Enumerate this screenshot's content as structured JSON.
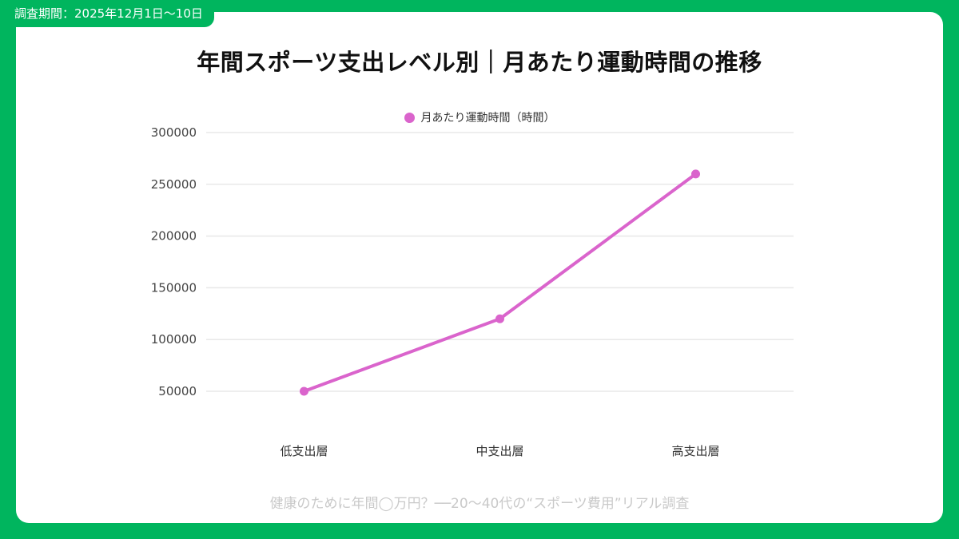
{
  "badge": {
    "label": "調査期間：2025年12月1日〜10日"
  },
  "header": {
    "title": "年間スポーツ支出レベル別｜月あたり運動時間の推移"
  },
  "legend": {
    "label": "月あたり運動時間（時間）"
  },
  "footer": {
    "caption": "健康のために年間◯万円？──20〜40代の“スポーツ費用”リアル調査"
  },
  "colors": {
    "frame_green": "#00b55e",
    "line_pink": "#da64cc",
    "grid": "#e8e8e8",
    "tick_text": "#444444",
    "category_text": "#333333",
    "footer_text": "#c9c9c9"
  },
  "chart_data": {
    "type": "line",
    "categories": [
      "低支出層",
      "中支出層",
      "高支出層"
    ],
    "series": [
      {
        "name": "月あたり運動時間（時間）",
        "values": [
          50000,
          120000,
          260000
        ]
      }
    ],
    "title": "年間スポーツ支出レベル別｜月あたり運動時間の推移",
    "xlabel": "",
    "ylabel": "",
    "ylim": [
      50000,
      300000
    ],
    "yticks": [
      50000,
      100000,
      150000,
      200000,
      250000,
      300000
    ],
    "grid": true,
    "legend_position": "top"
  }
}
